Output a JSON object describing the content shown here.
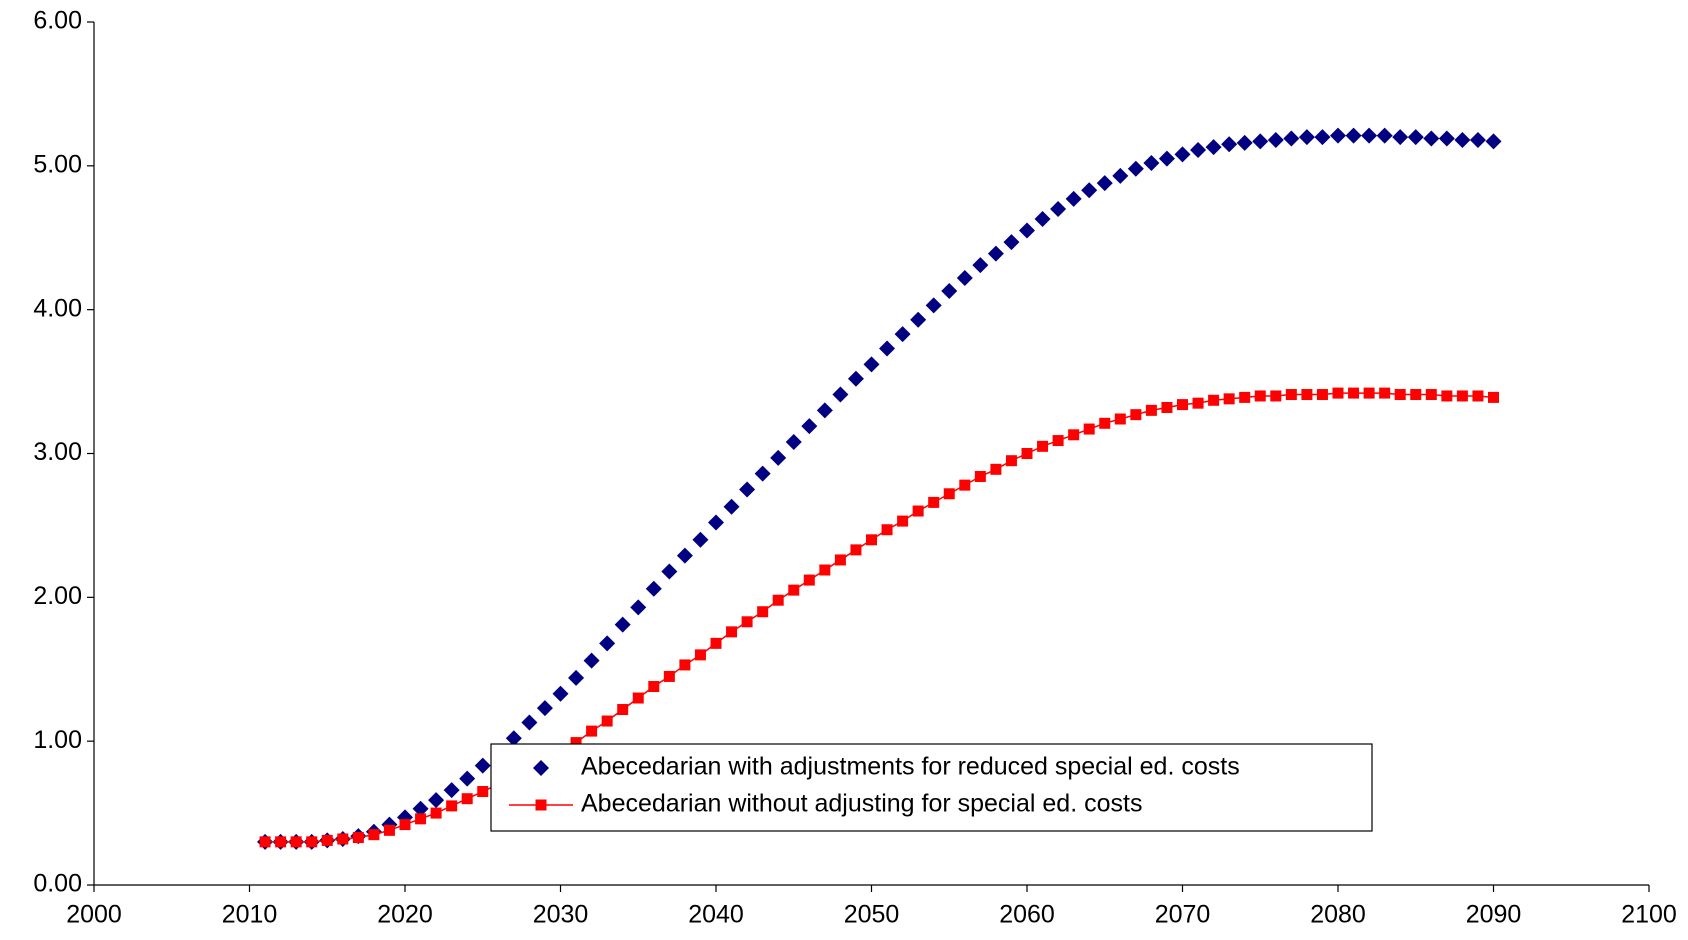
{
  "chart_data": {
    "type": "scatter",
    "x": [
      2011,
      2012,
      2013,
      2014,
      2015,
      2016,
      2017,
      2018,
      2019,
      2020,
      2021,
      2022,
      2023,
      2024,
      2025,
      2026,
      2027,
      2028,
      2029,
      2030,
      2031,
      2032,
      2033,
      2034,
      2035,
      2036,
      2037,
      2038,
      2039,
      2040,
      2041,
      2042,
      2043,
      2044,
      2045,
      2046,
      2047,
      2048,
      2049,
      2050,
      2051,
      2052,
      2053,
      2054,
      2055,
      2056,
      2057,
      2058,
      2059,
      2060,
      2061,
      2062,
      2063,
      2064,
      2065,
      2066,
      2067,
      2068,
      2069,
      2070,
      2071,
      2072,
      2073,
      2074,
      2075,
      2076,
      2077,
      2078,
      2079,
      2080,
      2081,
      2082,
      2083,
      2084,
      2085,
      2086,
      2087,
      2088,
      2089,
      2090
    ],
    "series": [
      {
        "name": "Abecedarian with adjustments for reduced special ed. costs",
        "color": "#000080",
        "marker": "diamond",
        "line": false,
        "values": [
          0.3,
          0.3,
          0.3,
          0.3,
          0.31,
          0.32,
          0.34,
          0.37,
          0.42,
          0.47,
          0.53,
          0.59,
          0.66,
          0.74,
          0.83,
          0.92,
          1.02,
          1.13,
          1.23,
          1.33,
          1.44,
          1.56,
          1.68,
          1.81,
          1.93,
          2.06,
          2.18,
          2.29,
          2.4,
          2.52,
          2.63,
          2.75,
          2.86,
          2.97,
          3.08,
          3.19,
          3.3,
          3.41,
          3.52,
          3.62,
          3.73,
          3.83,
          3.93,
          4.03,
          4.13,
          4.22,
          4.31,
          4.39,
          4.47,
          4.55,
          4.63,
          4.7,
          4.77,
          4.83,
          4.88,
          4.93,
          4.98,
          5.02,
          5.05,
          5.08,
          5.11,
          5.13,
          5.15,
          5.16,
          5.17,
          5.18,
          5.19,
          5.2,
          5.2,
          5.21,
          5.21,
          5.21,
          5.21,
          5.2,
          5.2,
          5.19,
          5.19,
          5.18,
          5.18,
          5.17
        ]
      },
      {
        "name": "Abecedarian without adjusting for special ed. costs",
        "color": "#ff0000",
        "marker": "square",
        "line": true,
        "values": [
          0.3,
          0.3,
          0.3,
          0.3,
          0.31,
          0.32,
          0.33,
          0.35,
          0.38,
          0.42,
          0.46,
          0.5,
          0.55,
          0.6,
          0.65,
          0.7,
          0.75,
          0.8,
          0.86,
          0.92,
          0.99,
          1.07,
          1.14,
          1.22,
          1.3,
          1.38,
          1.45,
          1.53,
          1.6,
          1.68,
          1.76,
          1.83,
          1.9,
          1.98,
          2.05,
          2.12,
          2.19,
          2.26,
          2.33,
          2.4,
          2.47,
          2.53,
          2.6,
          2.66,
          2.72,
          2.78,
          2.84,
          2.89,
          2.95,
          3.0,
          3.05,
          3.09,
          3.13,
          3.17,
          3.21,
          3.24,
          3.27,
          3.3,
          3.32,
          3.34,
          3.35,
          3.37,
          3.38,
          3.39,
          3.4,
          3.4,
          3.41,
          3.41,
          3.41,
          3.42,
          3.42,
          3.42,
          3.42,
          3.41,
          3.41,
          3.41,
          3.4,
          3.4,
          3.4,
          3.39
        ]
      }
    ],
    "xlim": [
      2000,
      2100
    ],
    "xticks": [
      2000,
      2010,
      2020,
      2030,
      2040,
      2050,
      2060,
      2070,
      2080,
      2090,
      2100
    ],
    "ylim": [
      0,
      6
    ],
    "yticks": [
      {
        "value": 0,
        "label": "0.00"
      },
      {
        "value": 1,
        "label": "1.00"
      },
      {
        "value": 2,
        "label": "2.00"
      },
      {
        "value": 3,
        "label": "3.00"
      },
      {
        "value": 4,
        "label": "4.00"
      },
      {
        "value": 5,
        "label": "5.00"
      },
      {
        "value": 6,
        "label": "6.00"
      }
    ],
    "grid": false,
    "legend": "lower center"
  }
}
